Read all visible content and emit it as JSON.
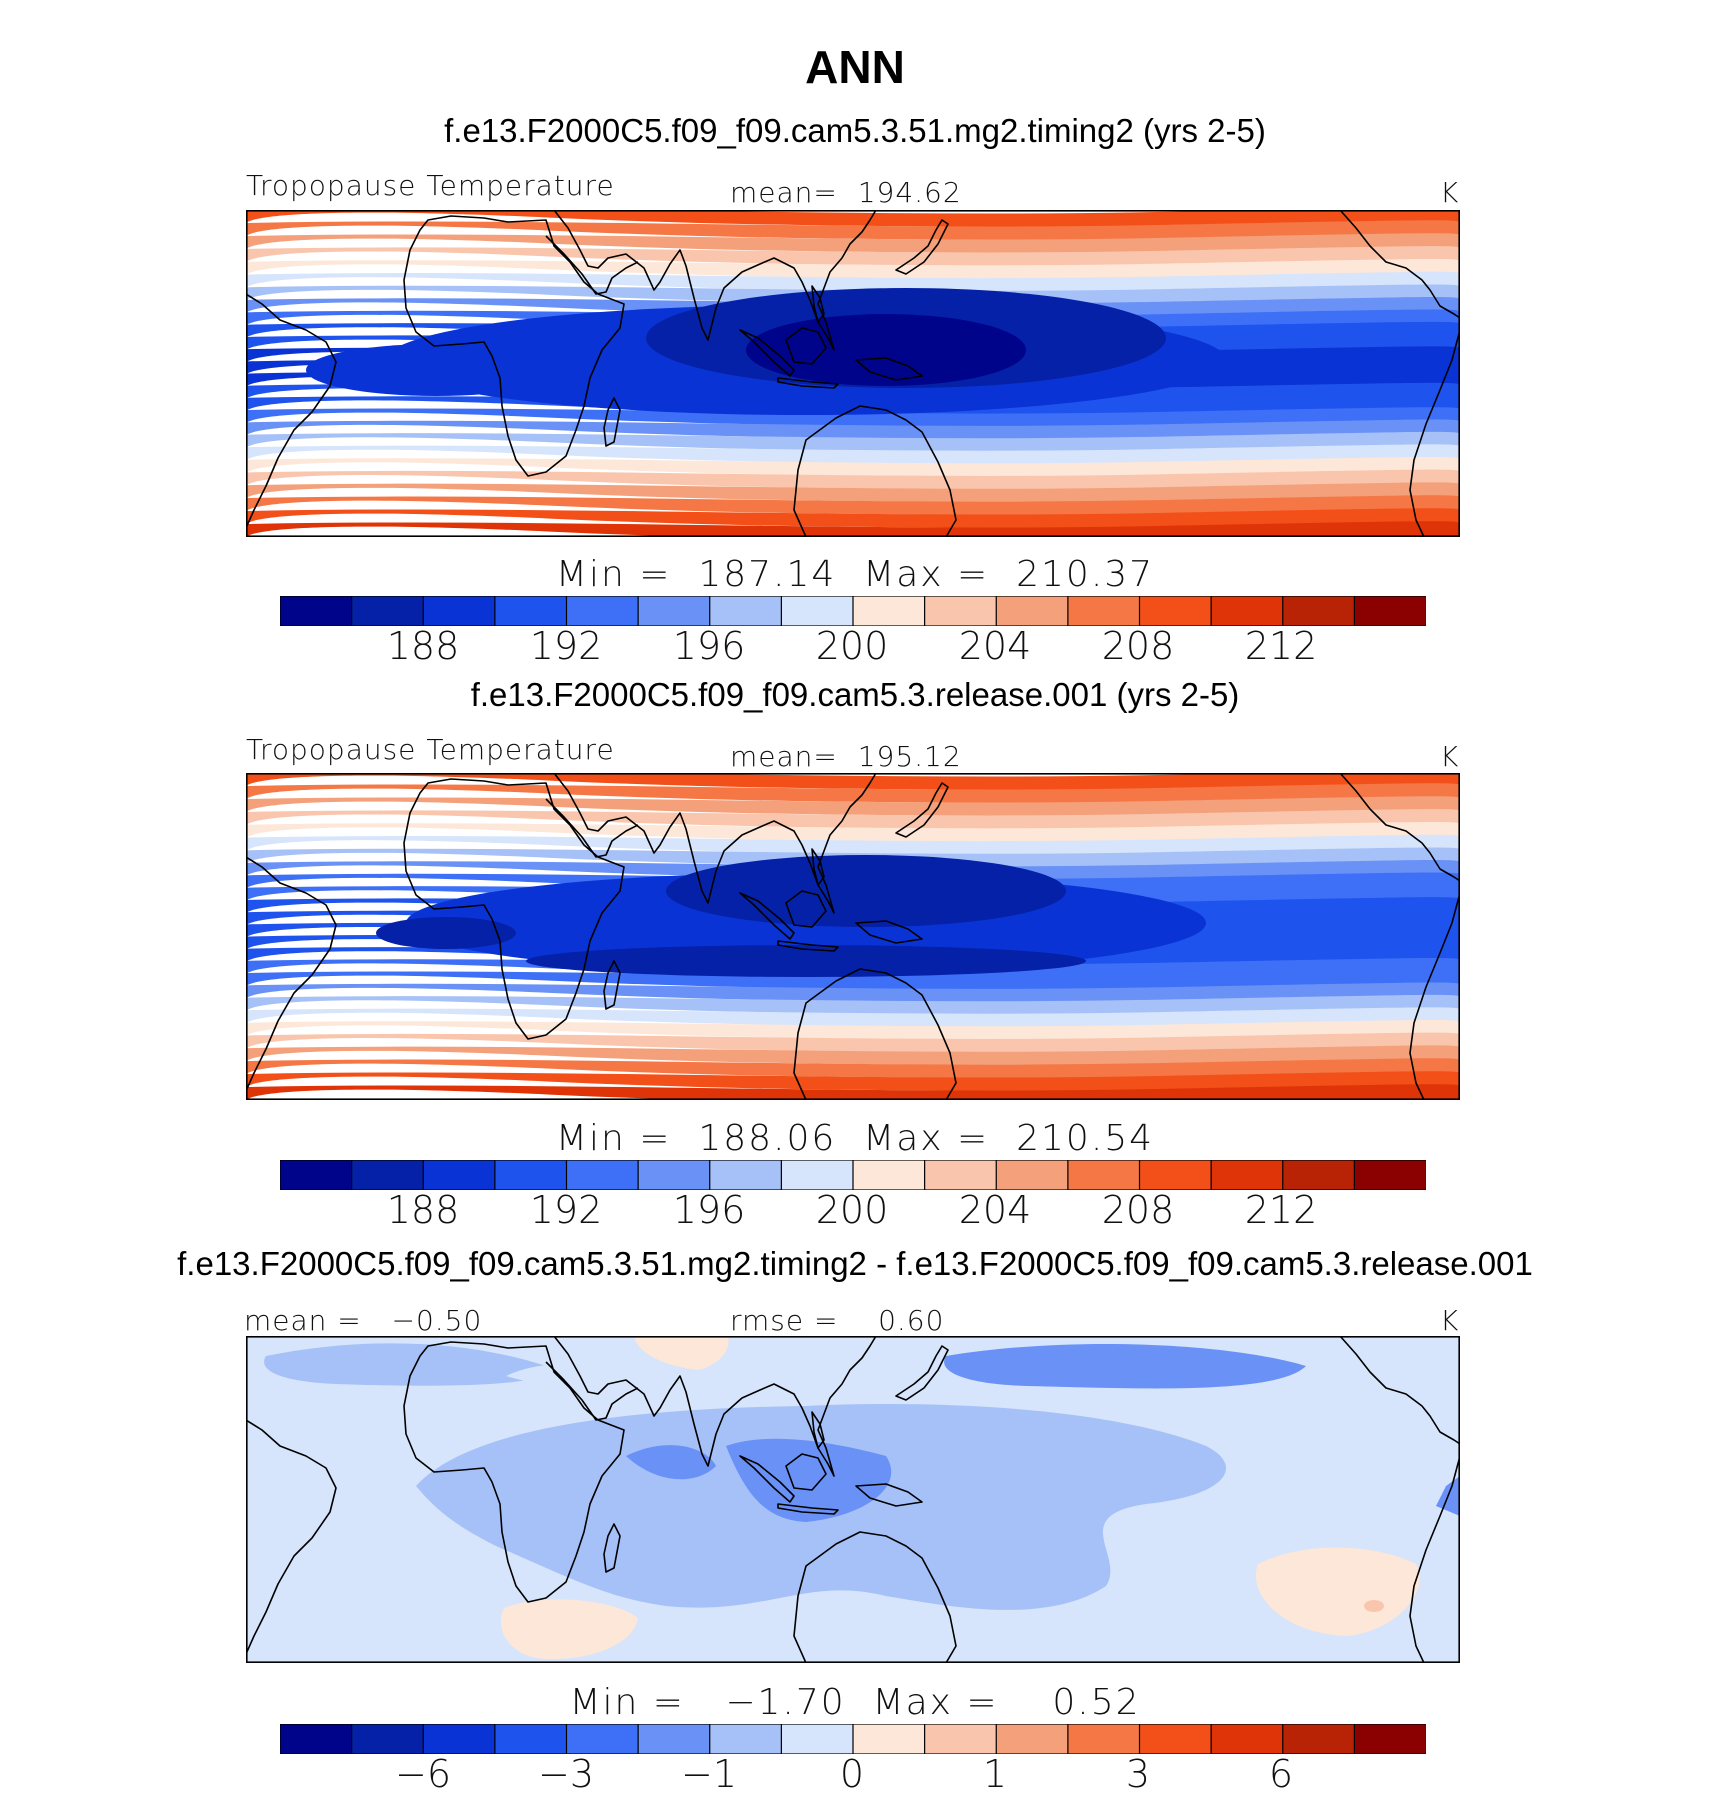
{
  "page_title": "ANN",
  "colors": [
    "#00048a",
    "#0521a8",
    "#0a33d6",
    "#1f53ee",
    "#3e70f7",
    "#6a92f6",
    "#a6c1f7",
    "#d6e5fb",
    "#fde7d8",
    "#f9c6ad",
    "#f4a07b",
    "#f47745",
    "#f34f18",
    "#de3408",
    "#b82306",
    "#8b0000"
  ],
  "chart_data": [
    {
      "type": "heatmap",
      "case": "f.e13.F2000C5.f09_f09.cam5.3.51.mg2.timing2 (yrs 2-5)",
      "variable": "Tropopause Temperature",
      "stat_label": "mean=",
      "stat_value": "194.62",
      "units": "K",
      "min_label": "Min =",
      "min": "187.14",
      "max_label": "Max =",
      "max": "210.37",
      "colorbar_ticks": [
        "188",
        "192",
        "196",
        "200",
        "204",
        "208",
        "212"
      ],
      "levels": [
        186,
        188,
        190,
        192,
        194,
        196,
        198,
        200,
        202,
        204,
        206,
        208,
        210,
        212,
        214
      ],
      "zonal_profile_north_to_south": [
        210,
        208,
        206,
        204,
        202,
        200,
        198,
        196,
        194,
        192,
        191,
        190,
        189,
        190,
        191,
        192,
        194,
        196,
        198,
        200,
        202,
        204,
        206,
        208,
        210,
        212
      ]
    },
    {
      "type": "heatmap",
      "case": "f.e13.F2000C5.f09_f09.cam5.3.release.001 (yrs 2-5)",
      "variable": "Tropopause Temperature",
      "stat_label": "mean=",
      "stat_value": "195.12",
      "units": "K",
      "min_label": "Min =",
      "min": "188.06",
      "max_label": "Max =",
      "max": "210.54",
      "colorbar_ticks": [
        "188",
        "192",
        "196",
        "200",
        "204",
        "208",
        "212"
      ],
      "levels": [
        186,
        188,
        190,
        192,
        194,
        196,
        198,
        200,
        202,
        204,
        206,
        208,
        210,
        212,
        214
      ],
      "zonal_profile_north_to_south": [
        210,
        208,
        206,
        204,
        202,
        200,
        198,
        196,
        194,
        193,
        192,
        191,
        191,
        191,
        192,
        193,
        194,
        196,
        198,
        200,
        202,
        204,
        206,
        208,
        210,
        212
      ]
    },
    {
      "type": "heatmap",
      "case": "f.e13.F2000C5.f09_f09.cam5.3.51.mg2.timing2 - f.e13.F2000C5.f09_f09.cam5.3.release.001",
      "stat_label": "mean =",
      "stat_value": "−0.50",
      "stat2_label": "rmse =",
      "stat2_value": "0.60",
      "units": "K",
      "min_label": "Min =",
      "min": "−1.70",
      "max_label": "Max =",
      "max": "0.52",
      "colorbar_ticks": [
        "−6",
        "−3",
        "−1",
        "0",
        "1",
        "3",
        "6"
      ]
    }
  ]
}
